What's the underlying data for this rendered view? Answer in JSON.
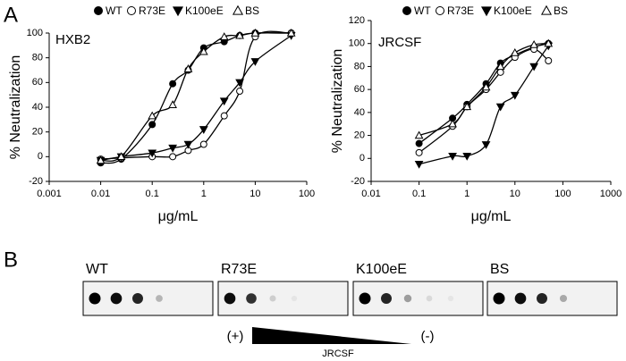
{
  "panel_labels": [
    "A",
    "B"
  ],
  "chart_data": [
    {
      "type": "scatter",
      "annotation": "HXB2",
      "xlabel": "μg/mL",
      "ylabel": "% Neutralization",
      "xscale": "log",
      "xlim": [
        0.001,
        100
      ],
      "xticks": [
        0.001,
        0.01,
        0.1,
        1,
        10,
        100
      ],
      "ylim": [
        -20,
        100
      ],
      "yticks": [
        -20,
        0,
        20,
        40,
        60,
        80,
        100
      ],
      "x": [
        0.01,
        0.025,
        0.1,
        0.25,
        0.5,
        1,
        2.5,
        5,
        10,
        50
      ],
      "series": [
        {
          "name": "WT",
          "color": "#000000",
          "marker": "circle",
          "filled": true,
          "values": [
            -5,
            -2,
            26,
            59,
            70,
            88,
            93,
            98,
            100,
            100
          ]
        },
        {
          "name": "R73E",
          "color": "#000000",
          "marker": "circle",
          "filled": false,
          "values": [
            -2,
            -1,
            0,
            0,
            5,
            10,
            33,
            53,
            97,
            100
          ]
        },
        {
          "name": "K100eE",
          "color": "#000000",
          "marker": "triangle-down",
          "filled": true,
          "values": [
            -3,
            0,
            3,
            7,
            10,
            22,
            45,
            60,
            77,
            98
          ]
        },
        {
          "name": "BS",
          "color": "#000000",
          "marker": "triangle-up",
          "filled": false,
          "values": [
            -3,
            0,
            33,
            42,
            71,
            85,
            97,
            98,
            100,
            100
          ]
        }
      ]
    },
    {
      "type": "scatter",
      "annotation": "JRCSF",
      "xlabel": "μg/mL",
      "ylabel": "% Neutralization",
      "xscale": "log",
      "xlim": [
        0.01,
        1000
      ],
      "xticks": [
        0.01,
        0.1,
        1,
        10,
        100,
        1000
      ],
      "ylim": [
        -20,
        120
      ],
      "yticks": [
        -20,
        0,
        20,
        40,
        60,
        80,
        100,
        120
      ],
      "x": [
        0.1,
        0.5,
        1,
        2.5,
        5,
        10,
        25,
        50
      ],
      "series": [
        {
          "name": "WT",
          "color": "#000000",
          "marker": "circle",
          "filled": true,
          "values": [
            13,
            35,
            47,
            65,
            83,
            90,
            97,
            100
          ]
        },
        {
          "name": "R73E",
          "color": "#000000",
          "marker": "circle",
          "filled": false,
          "values": [
            5,
            28,
            45,
            60,
            75,
            88,
            95,
            85
          ]
        },
        {
          "name": "K100eE",
          "color": "#000000",
          "marker": "triangle-down",
          "filled": true,
          "values": [
            -5,
            2,
            2,
            12,
            45,
            55,
            80,
            98
          ]
        },
        {
          "name": "BS",
          "color": "#000000",
          "marker": "triangle-up",
          "filled": false,
          "values": [
            20,
            30,
            45,
            62,
            80,
            92,
            99,
            100
          ]
        }
      ]
    }
  ],
  "dot_blot": {
    "lanes": [
      "WT",
      "R73E",
      "K100eE",
      "BS"
    ],
    "high_label": "(+)",
    "low_label": "(-)",
    "gradient_label": "JRCSF"
  }
}
